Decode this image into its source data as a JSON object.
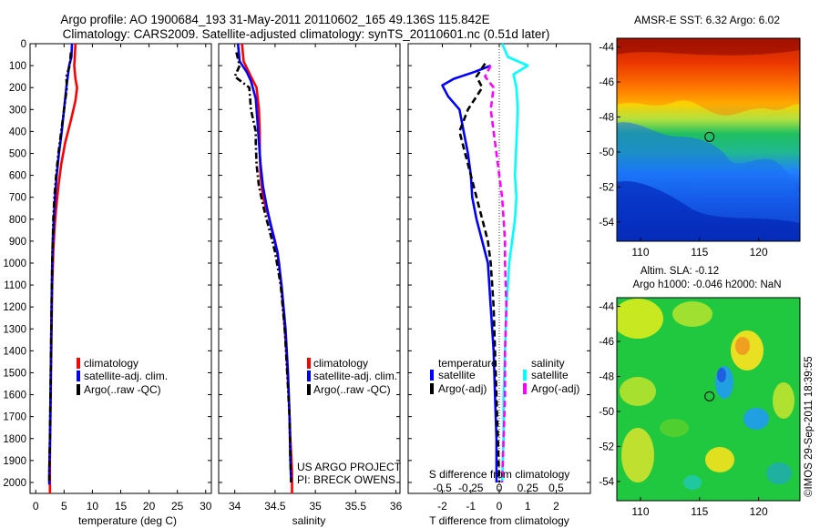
{
  "header": {
    "line1": "Argo profile: AO 1900684_193 31-May-2011 20110602_165 49.136S 115.842E",
    "line2": "Climatology: CARS2009. Satellite-adjusted climatology: synTS_20110601.nc (0.51d later)"
  },
  "colors": {
    "climatology": "#ff0000",
    "satellite": "#0000ff",
    "argo": "#000000",
    "satellite_salinity": "#00ffff",
    "argo_salinity": "#ff00ff"
  },
  "credits": {
    "project": "US ARGO PROJECT",
    "pi": "PI: BRECK OWENS",
    "imos": "©IMOS 29-Sep-2011 18:39:55"
  },
  "chart_data": [
    {
      "id": "temperature",
      "type": "line",
      "xlabel": "temperature (deg C)",
      "xlim": [
        -1,
        31
      ],
      "xticks": [
        0,
        5,
        10,
        15,
        20,
        25,
        30
      ],
      "ylim": [
        2050,
        0
      ],
      "yticks": [
        0,
        100,
        200,
        300,
        400,
        500,
        600,
        700,
        800,
        900,
        1000,
        1100,
        1200,
        1300,
        1400,
        1500,
        1600,
        1700,
        1800,
        1900,
        2000
      ],
      "legend": [
        "climatology",
        "satellite-adj. clim.",
        "Argo(..raw -QC)"
      ],
      "series": [
        {
          "name": "climatology",
          "style": "solid",
          "color": "#ff0000",
          "points": [
            [
              7.0,
              0
            ],
            [
              6.9,
              60
            ],
            [
              6.8,
              100
            ],
            [
              7.0,
              160
            ],
            [
              7.3,
              200
            ],
            [
              7.0,
              260
            ],
            [
              6.2,
              350
            ],
            [
              5.2,
              450
            ],
            [
              4.5,
              550
            ],
            [
              4.0,
              650
            ],
            [
              3.6,
              750
            ],
            [
              3.3,
              850
            ],
            [
              3.1,
              950
            ],
            [
              2.9,
              1100
            ],
            [
              2.8,
              1300
            ],
            [
              2.7,
              1500
            ],
            [
              2.6,
              1700
            ],
            [
              2.5,
              1900
            ],
            [
              2.5,
              2050
            ]
          ]
        },
        {
          "name": "satellite-adj. clim.",
          "style": "solid",
          "color": "#0000ff",
          "points": [
            [
              6.4,
              0
            ],
            [
              6.3,
              60
            ],
            [
              5.9,
              100
            ],
            [
              5.4,
              200
            ],
            [
              5.0,
              300
            ],
            [
              4.6,
              400
            ],
            [
              4.1,
              500
            ],
            [
              3.7,
              600
            ],
            [
              3.4,
              700
            ],
            [
              3.2,
              800
            ],
            [
              3.0,
              900
            ],
            [
              2.9,
              1000
            ],
            [
              2.8,
              1200
            ],
            [
              2.7,
              1400
            ],
            [
              2.6,
              1600
            ],
            [
              2.5,
              1800
            ],
            [
              2.4,
              1950
            ],
            [
              2.4,
              2010
            ]
          ]
        },
        {
          "name": "Argo(..raw -QC)",
          "style": "dashdot",
          "color": "#000000",
          "points": [
            [
              6.2,
              40
            ],
            [
              6.0,
              100
            ],
            [
              5.4,
              150
            ],
            [
              5.5,
              200
            ],
            [
              5.0,
              300
            ],
            [
              4.5,
              400
            ],
            [
              4.0,
              500
            ],
            [
              3.6,
              600
            ],
            [
              3.3,
              700
            ],
            [
              3.1,
              800
            ],
            [
              3.0,
              900
            ],
            [
              2.9,
              1000
            ],
            [
              2.8,
              1200
            ],
            [
              2.7,
              1400
            ],
            [
              2.6,
              1600
            ],
            [
              2.5,
              1800
            ],
            [
              2.4,
              1950
            ],
            [
              2.4,
              2000
            ]
          ]
        }
      ]
    },
    {
      "id": "salinity",
      "type": "line",
      "xlabel": "salinity",
      "xlim": [
        33.8,
        36.05
      ],
      "xticks": [
        34,
        34.5,
        35,
        35.5,
        36
      ],
      "xticklabels": [
        "34",
        "34.5",
        "35",
        "35.5",
        "36"
      ],
      "ylim": [
        2050,
        0
      ],
      "legend": [
        "climatology",
        "satellite-adj. clim.",
        "Argo(..raw -QC)"
      ],
      "series": [
        {
          "name": "climatology",
          "style": "solid",
          "color": "#ff0000",
          "points": [
            [
              34.09,
              0
            ],
            [
              34.11,
              80
            ],
            [
              34.2,
              150
            ],
            [
              34.27,
              200
            ],
            [
              34.3,
              300
            ],
            [
              34.31,
              400
            ],
            [
              34.31,
              500
            ],
            [
              34.32,
              600
            ],
            [
              34.35,
              700
            ],
            [
              34.43,
              800
            ],
            [
              34.5,
              900
            ],
            [
              34.55,
              1000
            ],
            [
              34.6,
              1200
            ],
            [
              34.64,
              1400
            ],
            [
              34.67,
              1600
            ],
            [
              34.69,
              1800
            ],
            [
              34.71,
              1950
            ],
            [
              34.71,
              2050
            ]
          ]
        },
        {
          "name": "satellite-adj. clim.",
          "style": "solid",
          "color": "#0000ff",
          "points": [
            [
              34.04,
              0
            ],
            [
              34.06,
              80
            ],
            [
              34.15,
              130
            ],
            [
              34.2,
              170
            ],
            [
              34.26,
              250
            ],
            [
              34.28,
              350
            ],
            [
              34.3,
              450
            ],
            [
              34.32,
              550
            ],
            [
              34.35,
              650
            ],
            [
              34.4,
              750
            ],
            [
              34.46,
              850
            ],
            [
              34.53,
              950
            ],
            [
              34.58,
              1100
            ],
            [
              34.63,
              1300
            ],
            [
              34.66,
              1500
            ],
            [
              34.68,
              1700
            ],
            [
              34.69,
              1900
            ],
            [
              34.7,
              2000
            ]
          ]
        },
        {
          "name": "Argo(..raw -QC)",
          "style": "dashdot",
          "color": "#000000",
          "points": [
            [
              34.02,
              40
            ],
            [
              34.06,
              100
            ],
            [
              34.0,
              150
            ],
            [
              34.18,
              200
            ],
            [
              34.2,
              300
            ],
            [
              34.26,
              400
            ],
            [
              34.26,
              450
            ],
            [
              34.27,
              550
            ],
            [
              34.3,
              650
            ],
            [
              34.36,
              750
            ],
            [
              34.43,
              850
            ],
            [
              34.5,
              950
            ],
            [
              34.57,
              1100
            ],
            [
              34.62,
              1300
            ],
            [
              34.65,
              1500
            ],
            [
              34.68,
              1700
            ],
            [
              34.69,
              1900
            ],
            [
              34.7,
              2000
            ]
          ]
        }
      ]
    },
    {
      "id": "difference",
      "type": "line",
      "xlabel": "T difference from climatology",
      "top_xlabel": "S difference from climatology",
      "xlim": [
        -3.2,
        3.2
      ],
      "xticks": [
        -2,
        -1,
        0,
        1,
        2
      ],
      "top_xticklabels": [
        "-0.5",
        "-0.25",
        "0",
        "0.25",
        "0.5"
      ],
      "ylim": [
        2050,
        0
      ],
      "legend": {
        "temperature_heading": "temperature",
        "salinity_heading": "salinity",
        "entries": [
          "satellite",
          "Argo(-adj)",
          "satellite",
          "Argo(-adj)"
        ]
      },
      "series": [
        {
          "name": "satellite",
          "group": "temperature",
          "style": "solid",
          "color": "#0000ff",
          "points": [
            [
              -0.3,
              100
            ],
            [
              -0.9,
              130
            ],
            [
              -1.6,
              160
            ],
            [
              -2.0,
              190
            ],
            [
              -1.8,
              240
            ],
            [
              -1.4,
              300
            ],
            [
              -1.25,
              400
            ],
            [
              -1.1,
              500
            ],
            [
              -1.0,
              600
            ],
            [
              -0.95,
              700
            ],
            [
              -0.8,
              800
            ],
            [
              -0.6,
              900
            ],
            [
              -0.4,
              1000
            ],
            [
              -0.3,
              1200
            ],
            [
              -0.2,
              1400
            ],
            [
              -0.15,
              1600
            ],
            [
              -0.1,
              1800
            ],
            [
              -0.1,
              2000
            ]
          ]
        },
        {
          "name": "Argo(-adj)",
          "group": "temperature",
          "style": "dashed",
          "color": "#000000",
          "points": [
            [
              -0.5,
              90
            ],
            [
              -0.8,
              150
            ],
            [
              -0.6,
              200
            ],
            [
              -1.1,
              300
            ],
            [
              -1.4,
              400
            ],
            [
              -1.2,
              500
            ],
            [
              -1.0,
              600
            ],
            [
              -0.8,
              700
            ],
            [
              -0.6,
              800
            ],
            [
              -0.4,
              900
            ],
            [
              -0.3,
              1000
            ],
            [
              -0.2,
              1200
            ],
            [
              -0.15,
              1400
            ],
            [
              -0.1,
              1600
            ],
            [
              -0.05,
              1800
            ],
            [
              0.0,
              2000
            ]
          ]
        },
        {
          "name": "satellite",
          "group": "salinity",
          "style": "solid",
          "color": "#00ffff",
          "points": [
            [
              0.1,
              0
            ],
            [
              0.3,
              60
            ],
            [
              1.0,
              100
            ],
            [
              0.5,
              140
            ],
            [
              0.6,
              200
            ],
            [
              0.65,
              300
            ],
            [
              0.6,
              450
            ],
            [
              0.55,
              600
            ],
            [
              0.6,
              700
            ],
            [
              0.55,
              800
            ],
            [
              0.45,
              900
            ],
            [
              0.35,
              1000
            ],
            [
              0.25,
              1200
            ],
            [
              0.2,
              1400
            ],
            [
              0.15,
              1600
            ],
            [
              0.15,
              1800
            ],
            [
              0.1,
              2000
            ]
          ]
        },
        {
          "name": "Argo(-adj)",
          "group": "salinity",
          "style": "dashed",
          "color": "#ff00ff",
          "points": [
            [
              -0.3,
              100
            ],
            [
              -0.5,
              150
            ],
            [
              -0.2,
              200
            ],
            [
              -0.3,
              300
            ],
            [
              -0.2,
              400
            ],
            [
              -0.1,
              500
            ],
            [
              0.0,
              600
            ],
            [
              0.1,
              700
            ],
            [
              0.15,
              800
            ],
            [
              0.2,
              900
            ],
            [
              0.2,
              1000
            ],
            [
              0.25,
              1200
            ],
            [
              0.2,
              1400
            ],
            [
              0.2,
              1600
            ],
            [
              0.15,
              1800
            ],
            [
              0.1,
              2000
            ]
          ]
        }
      ]
    },
    {
      "id": "sst_map",
      "type": "heatmap",
      "title": "AMSR-E SST: 6.32 Argo: 6.02",
      "xlim": [
        108,
        123.5
      ],
      "ylim": [
        -55.1,
        -43.5
      ],
      "xticks": [
        110,
        115,
        120
      ],
      "yticks": [
        -44,
        -46,
        -48,
        -50,
        -52,
        -54
      ],
      "marker": {
        "lon": 115.842,
        "lat": -49.136
      }
    },
    {
      "id": "sla_map",
      "type": "heatmap",
      "title_line1": "Altim. SLA: -0.12",
      "title_line2": "Argo h1000: -0.046 h2000: NaN",
      "xlim": [
        108,
        123.5
      ],
      "ylim": [
        -55.1,
        -43.5
      ],
      "xticks": [
        110,
        115,
        120
      ],
      "yticks": [
        -44,
        -46,
        -48,
        -50,
        -52,
        -54
      ],
      "marker": {
        "lon": 115.842,
        "lat": -49.136
      }
    }
  ]
}
